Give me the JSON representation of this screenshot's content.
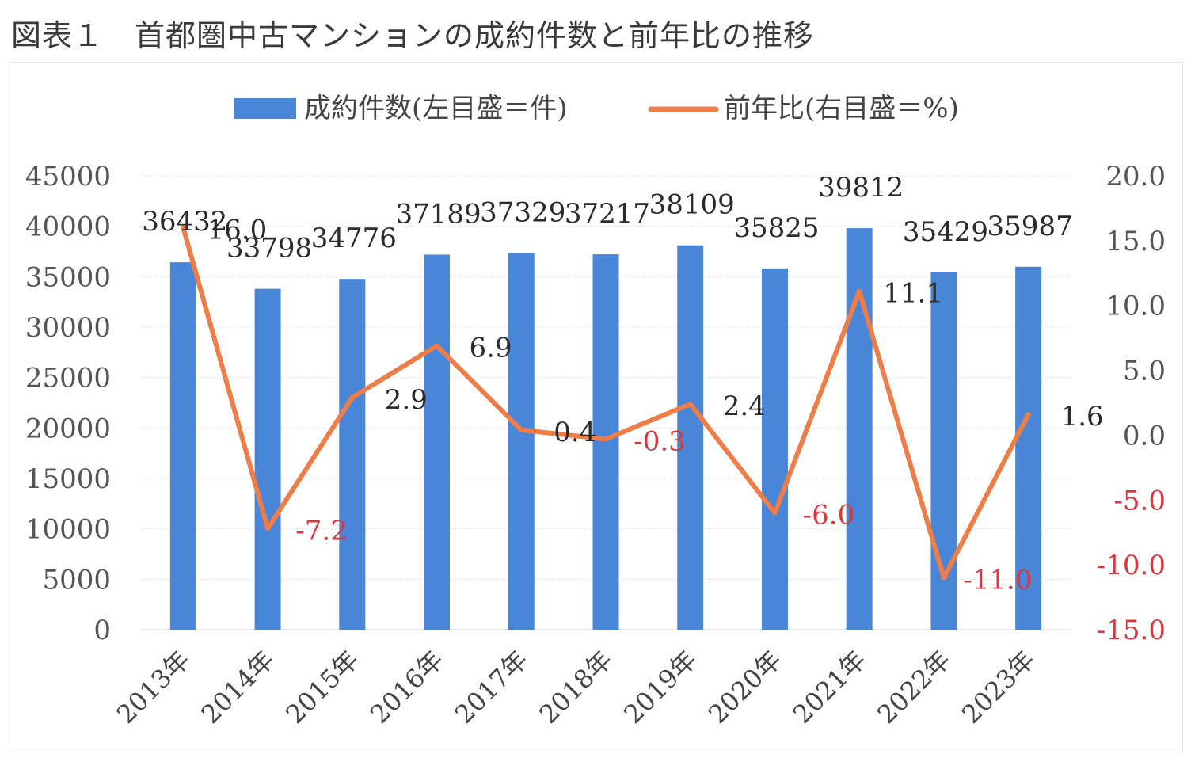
{
  "figure": {
    "title": "図表１　首都圏中古マンションの成約件数と前年比の推移"
  },
  "chart_data": {
    "type": "bar",
    "categories": [
      "2013年",
      "2014年",
      "2015年",
      "2016年",
      "2017年",
      "2018年",
      "2019年",
      "2020年",
      "2021年",
      "2022年",
      "2023年"
    ],
    "series": [
      {
        "name": "成約件数(左目盛＝件)",
        "type": "bar",
        "axis": "left",
        "color": "#4a86d8",
        "values": [
          36432,
          33798,
          34776,
          37189,
          37329,
          37217,
          38109,
          35825,
          39812,
          35429,
          35987
        ]
      },
      {
        "name": "前年比(右目盛＝%)",
        "type": "line",
        "axis": "right",
        "color": "#ee7d47",
        "values": [
          16.0,
          -7.2,
          2.9,
          6.9,
          0.4,
          -0.3,
          2.4,
          -6.0,
          11.1,
          -11.0,
          1.6
        ],
        "labels": [
          "16.0",
          "-7.2",
          "2.9",
          "6.9",
          "0.4",
          "-0.3",
          "2.4",
          "-6.0",
          "11.1",
          "-11.0",
          "1.6"
        ]
      }
    ],
    "y_left": {
      "ylim": [
        0,
        45000
      ],
      "ticks": [
        "0",
        "5000",
        "10000",
        "15000",
        "20000",
        "25000",
        "30000",
        "35000",
        "40000",
        "45000"
      ]
    },
    "y_right": {
      "ylim": [
        -15,
        20
      ],
      "ticks": [
        "-15.0",
        "-10.0",
        "-5.0",
        "0.0",
        "5.0",
        "10.0",
        "15.0",
        "20.0"
      ]
    },
    "legend_position": "top",
    "grid": true,
    "negative_label_color": "#d9363e",
    "positive_label_color": "#2b2b2b"
  }
}
